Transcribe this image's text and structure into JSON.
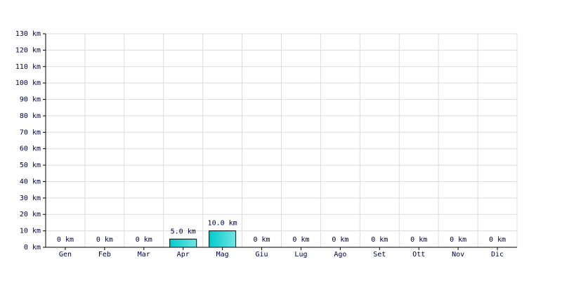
{
  "chart_data": {
    "type": "bar",
    "categories": [
      "Gen",
      "Feb",
      "Mar",
      "Apr",
      "Mag",
      "Giu",
      "Lug",
      "Ago",
      "Set",
      "Ott",
      "Nov",
      "Dic"
    ],
    "values": [
      0,
      0,
      0,
      5,
      10,
      0,
      0,
      0,
      0,
      0,
      0,
      0
    ],
    "value_labels": [
      "0 km",
      "0 km",
      "0 km",
      "5.0 km",
      "10.0 km",
      "0 km",
      "0 km",
      "0 km",
      "0 km",
      "0 km",
      "0 km",
      "0 km"
    ],
    "color": "#00cccc",
    "ylim": [
      0,
      130
    ],
    "yticks": [
      {
        "value": 0,
        "label": "0 km"
      },
      {
        "value": 10,
        "label": "10 km"
      },
      {
        "value": 20,
        "label": "20 km"
      },
      {
        "value": 30,
        "label": "30 km"
      },
      {
        "value": 40,
        "label": "40 km"
      },
      {
        "value": 50,
        "label": "50 km"
      },
      {
        "value": 60,
        "label": "60 km"
      },
      {
        "value": 70,
        "label": "70 km"
      },
      {
        "value": 80,
        "label": "80 km"
      },
      {
        "value": 90,
        "label": "90 km"
      },
      {
        "value": 100,
        "label": "100 km"
      },
      {
        "value": 110,
        "label": "110 km"
      },
      {
        "value": 120,
        "label": "120 km"
      },
      {
        "value": 130,
        "label": "130 km"
      }
    ],
    "grid": true
  }
}
